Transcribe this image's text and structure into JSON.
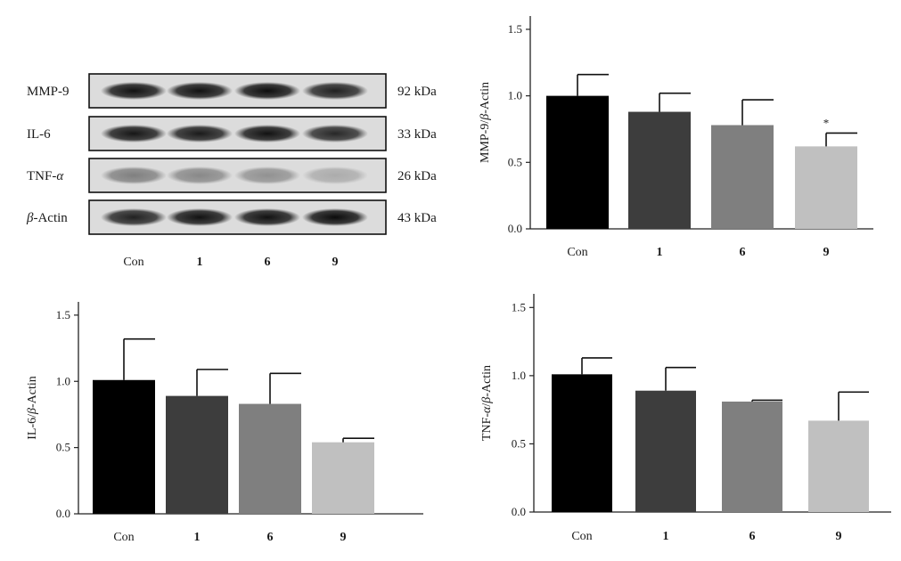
{
  "blot": {
    "proteins": [
      {
        "label_parts": [
          {
            "t": "MMP-9"
          }
        ],
        "kda": "92 kDa",
        "bands": [
          0.92,
          0.92,
          0.94,
          0.85
        ]
      },
      {
        "label_parts": [
          {
            "t": "IL-6"
          }
        ],
        "kda": "33 kDa",
        "bands": [
          0.9,
          0.88,
          0.92,
          0.82
        ]
      },
      {
        "label_parts": [
          {
            "t": "TNF-"
          },
          {
            "t": "α",
            "i": true
          }
        ],
        "kda": "26 kDa",
        "bands": [
          0.42,
          0.38,
          0.34,
          0.22
        ]
      },
      {
        "label_parts": [
          {
            "t": "β",
            "i": true
          },
          {
            "t": "-Actin"
          }
        ],
        "kda": "43 kDa",
        "bands": [
          0.85,
          0.92,
          0.92,
          0.95
        ]
      }
    ],
    "lanes": [
      "Con",
      "1",
      "6",
      "9"
    ]
  },
  "chart_data": [
    {
      "type": "bar",
      "categories": [
        "Con",
        "1",
        "6",
        "9"
      ],
      "values": [
        1.0,
        0.88,
        0.78,
        0.62
      ],
      "errors": [
        0.16,
        0.14,
        0.19,
        0.1
      ],
      "significance": [
        "",
        "",
        "",
        "*"
      ],
      "ylabel_parts": [
        {
          "t": "MMP-9/"
        },
        {
          "t": "β",
          "i": true
        },
        {
          "t": "-Actin"
        }
      ],
      "ylim": [
        0,
        1.6
      ],
      "yticks": [
        "0.0",
        "0.5",
        "1.0",
        "1.5"
      ],
      "colors": [
        "#000000",
        "#3d3d3d",
        "#7f7f7f",
        "#c0c0c0"
      ]
    },
    {
      "type": "bar",
      "categories": [
        "Con",
        "1",
        "6",
        "9"
      ],
      "values": [
        1.01,
        0.89,
        0.83,
        0.54
      ],
      "errors": [
        0.31,
        0.2,
        0.23,
        0.03
      ],
      "significance": [
        "",
        "",
        "",
        ""
      ],
      "ylabel_parts": [
        {
          "t": "IL-6/"
        },
        {
          "t": "β",
          "i": true
        },
        {
          "t": "-Actin"
        }
      ],
      "ylim": [
        0,
        1.6
      ],
      "yticks": [
        "0.0",
        "0.5",
        "1.0",
        "1.5"
      ],
      "colors": [
        "#000000",
        "#3d3d3d",
        "#7f7f7f",
        "#c0c0c0"
      ]
    },
    {
      "type": "bar",
      "categories": [
        "Con",
        "1",
        "6",
        "9"
      ],
      "values": [
        1.01,
        0.89,
        0.81,
        0.67
      ],
      "errors": [
        0.12,
        0.17,
        0.01,
        0.21
      ],
      "significance": [
        "",
        "",
        "",
        ""
      ],
      "ylabel_parts": [
        {
          "t": "TNF-"
        },
        {
          "t": "α",
          "i": true
        },
        {
          "t": "/"
        },
        {
          "t": "β",
          "i": true
        },
        {
          "t": "-Actin"
        }
      ],
      "ylim": [
        0,
        1.6
      ],
      "yticks": [
        "0.0",
        "0.5",
        "1.0",
        "1.5"
      ],
      "colors": [
        "#000000",
        "#3d3d3d",
        "#7f7f7f",
        "#c0c0c0"
      ]
    }
  ]
}
